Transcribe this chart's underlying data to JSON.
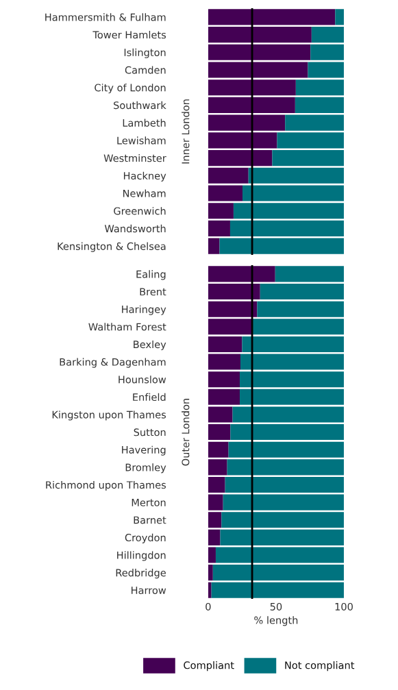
{
  "chart_data": [
    {
      "type": "bar",
      "orientation": "horizontal",
      "stacked": true,
      "title": "Inner London",
      "categories": [
        "Hammersmith & Fulham",
        "Tower Hamlets",
        "Islington",
        "Camden",
        "City of London",
        "Southwark",
        "Lambeth",
        "Lewisham",
        "Westminster",
        "Hackney",
        "Newham",
        "Greenwich",
        "Wandsworth",
        "Kensington & Chelsea"
      ],
      "series": [
        {
          "color": "#440154",
          "values": [
            93.6,
            76.2,
            75.4,
            73.5,
            64.6,
            64.1,
            56.7,
            50.8,
            47.2,
            29.7,
            25.3,
            18.7,
            16.2,
            8.4
          ]
        },
        {
          "color": "#00737f",
          "values": [
            6.4,
            23.8,
            24.6,
            26.5,
            35.4,
            35.9,
            43.3,
            49.2,
            52.8,
            70.3,
            74.7,
            81.3,
            83.8,
            91.6
          ]
        }
      ],
      "xlim": [
        0,
        100
      ],
      "tick_labels": "y",
      "ref_lines": [
        {
          "axis": "x",
          "value": 32.4,
          "color": "#000000"
        }
      ]
    },
    {
      "type": "bar",
      "orientation": "horizontal",
      "stacked": true,
      "title": "Outer London",
      "xlabel": "% length",
      "categories": [
        "Ealing",
        "Brent",
        "Haringey",
        "Waltham Forest",
        "Bexley",
        "Barking & Dagenham",
        "Hounslow",
        "Enfield",
        "Kingston upon Thames",
        "Sutton",
        "Havering",
        "Bromley",
        "Richmond upon Thames",
        "Merton",
        "Barnet",
        "Croydon",
        "Hillingdon",
        "Redbridge",
        "Harrow"
      ],
      "series": [
        {
          "name": "Compliant",
          "color": "#440154",
          "values": [
            49.4,
            38.3,
            36.1,
            32.4,
            25.0,
            23.8,
            23.3,
            23.3,
            18.0,
            16.4,
            15.0,
            14.0,
            12.5,
            11.0,
            9.8,
            8.9,
            5.6,
            3.5,
            2.4
          ]
        },
        {
          "name": "Not compliant",
          "color": "#00737f",
          "values": [
            50.6,
            61.7,
            63.9,
            67.6,
            75.0,
            76.2,
            76.7,
            76.7,
            82.0,
            83.6,
            85.0,
            86.0,
            87.5,
            89.0,
            90.2,
            91.1,
            94.4,
            96.5,
            97.6
          ]
        }
      ],
      "xlim": [
        0,
        100
      ],
      "xticks": [
        0,
        50,
        100
      ],
      "legend": "bottom",
      "ref_lines": [
        {
          "axis": "x",
          "value": 32.4,
          "color": "#000000"
        }
      ]
    }
  ]
}
